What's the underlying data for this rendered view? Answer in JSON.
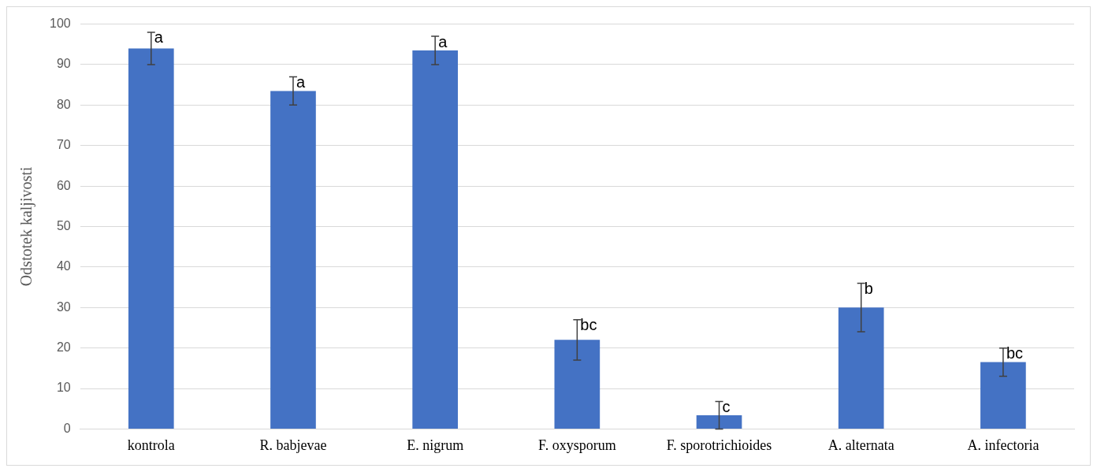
{
  "chart_data": {
    "type": "bar",
    "ylabel": "Odstotek kaljivosti",
    "categories": [
      "kontrola",
      "R. babjevae",
      "E. nigrum",
      "F. oxysporum",
      "F. sporotrichioides",
      "A. alternata",
      "A. infectoria"
    ],
    "values": [
      94,
      83.5,
      93.5,
      22,
      3.4,
      30,
      16.5
    ],
    "errors": [
      [
        90,
        98
      ],
      [
        80,
        87
      ],
      [
        90,
        97
      ],
      [
        17,
        27
      ],
      [
        0,
        6.8
      ],
      [
        24,
        36
      ],
      [
        13,
        20
      ]
    ],
    "color": "#4472c4",
    "ylim": [
      0,
      100
    ],
    "yticks": [
      0,
      10,
      20,
      30,
      40,
      50,
      60,
      70,
      80,
      90,
      100
    ],
    "grid": "y",
    "legend": false,
    "annotations": [
      {
        "text": "a",
        "x": "kontrola",
        "y": 98
      },
      {
        "text": "a",
        "x": "R. babjevae",
        "y": 87
      },
      {
        "text": "a",
        "x": "E. nigrum",
        "y": 97
      },
      {
        "text": "bc",
        "x": "F. oxysporum",
        "y": 27
      },
      {
        "text": "c",
        "x": "F. sporotrichioides",
        "y": 6.8
      },
      {
        "text": "b",
        "x": "A. alternata",
        "y": 36
      },
      {
        "text": "bc",
        "x": "A. infectoria",
        "y": 20
      }
    ]
  }
}
